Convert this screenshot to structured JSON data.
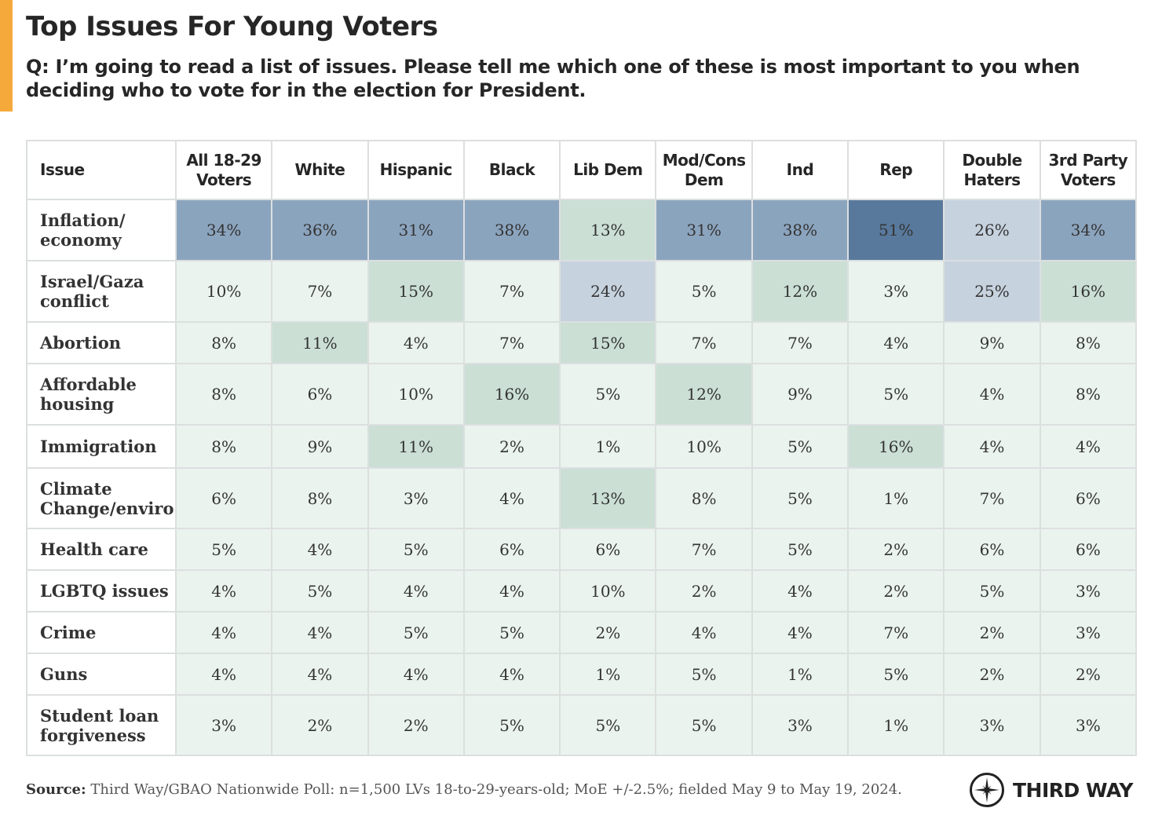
{
  "title": "Top Issues For Young Voters",
  "question": "Q: I’m going to read a list of issues. Please tell me which one of these is most important to you when deciding who to vote for in the election for President.",
  "chart_data": {
    "type": "table",
    "columns": [
      "Issue",
      "All 18-29 Voters",
      "White",
      "Hispanic",
      "Black",
      "Lib Dem",
      "Mod/Cons Dem",
      "Ind",
      "Rep",
      "Double Haters",
      "3rd Party Voters"
    ],
    "rows": [
      {
        "issue": "Inflation/ economy",
        "values": [
          "34%",
          "36%",
          "31%",
          "38%",
          "13%",
          "31%",
          "38%",
          "51%",
          "26%",
          "34%"
        ]
      },
      {
        "issue": "Israel/Gaza conflict",
        "values": [
          "10%",
          "7%",
          "15%",
          "7%",
          "24%",
          "5%",
          "12%",
          "3%",
          "25%",
          "16%"
        ]
      },
      {
        "issue": "Abortion",
        "values": [
          "8%",
          "11%",
          "4%",
          "7%",
          "15%",
          "7%",
          "7%",
          "4%",
          "9%",
          "8%"
        ]
      },
      {
        "issue": "Affordable housing",
        "values": [
          "8%",
          "6%",
          "10%",
          "16%",
          "5%",
          "12%",
          "9%",
          "5%",
          "4%",
          "8%"
        ]
      },
      {
        "issue": "Immigration",
        "values": [
          "8%",
          "9%",
          "11%",
          "2%",
          "1%",
          "10%",
          "5%",
          "16%",
          "4%",
          "4%"
        ]
      },
      {
        "issue": "Climate Change/enviro",
        "values": [
          "6%",
          "8%",
          "3%",
          "4%",
          "13%",
          "8%",
          "5%",
          "1%",
          "7%",
          "6%"
        ]
      },
      {
        "issue": "Health care",
        "values": [
          "5%",
          "4%",
          "5%",
          "6%",
          "6%",
          "7%",
          "5%",
          "2%",
          "6%",
          "6%"
        ]
      },
      {
        "issue": "LGBTQ issues",
        "values": [
          "4%",
          "5%",
          "4%",
          "4%",
          "10%",
          "2%",
          "4%",
          "2%",
          "5%",
          "3%"
        ]
      },
      {
        "issue": "Crime",
        "values": [
          "4%",
          "4%",
          "5%",
          "5%",
          "2%",
          "4%",
          "4%",
          "7%",
          "2%",
          "3%"
        ]
      },
      {
        "issue": "Guns",
        "values": [
          "4%",
          "4%",
          "4%",
          "4%",
          "1%",
          "5%",
          "1%",
          "5%",
          "2%",
          "2%"
        ]
      },
      {
        "issue": "Student loan forgiveness",
        "values": [
          "3%",
          "2%",
          "2%",
          "5%",
          "5%",
          "5%",
          "3%",
          "1%",
          "3%",
          "3%"
        ]
      }
    ],
    "color_scale": [
      {
        "min": 40,
        "color": "#58799c"
      },
      {
        "min": 30,
        "color": "#8ba4be"
      },
      {
        "min": 20,
        "color": "#c6d2de"
      },
      {
        "min": 11,
        "color": "#cbdfd5"
      },
      {
        "min": 0,
        "color": "#eaf3ee"
      }
    ]
  },
  "source_label": "Source:",
  "source": "Third Way/GBAO Nationwide Poll: n=1,500 LVs 18-to-29-years-old; MoE +/-2.5%; fielded May 9 to May 19, 2024.",
  "logo": "THIRD WAY",
  "accent_color": "#f6a93b"
}
